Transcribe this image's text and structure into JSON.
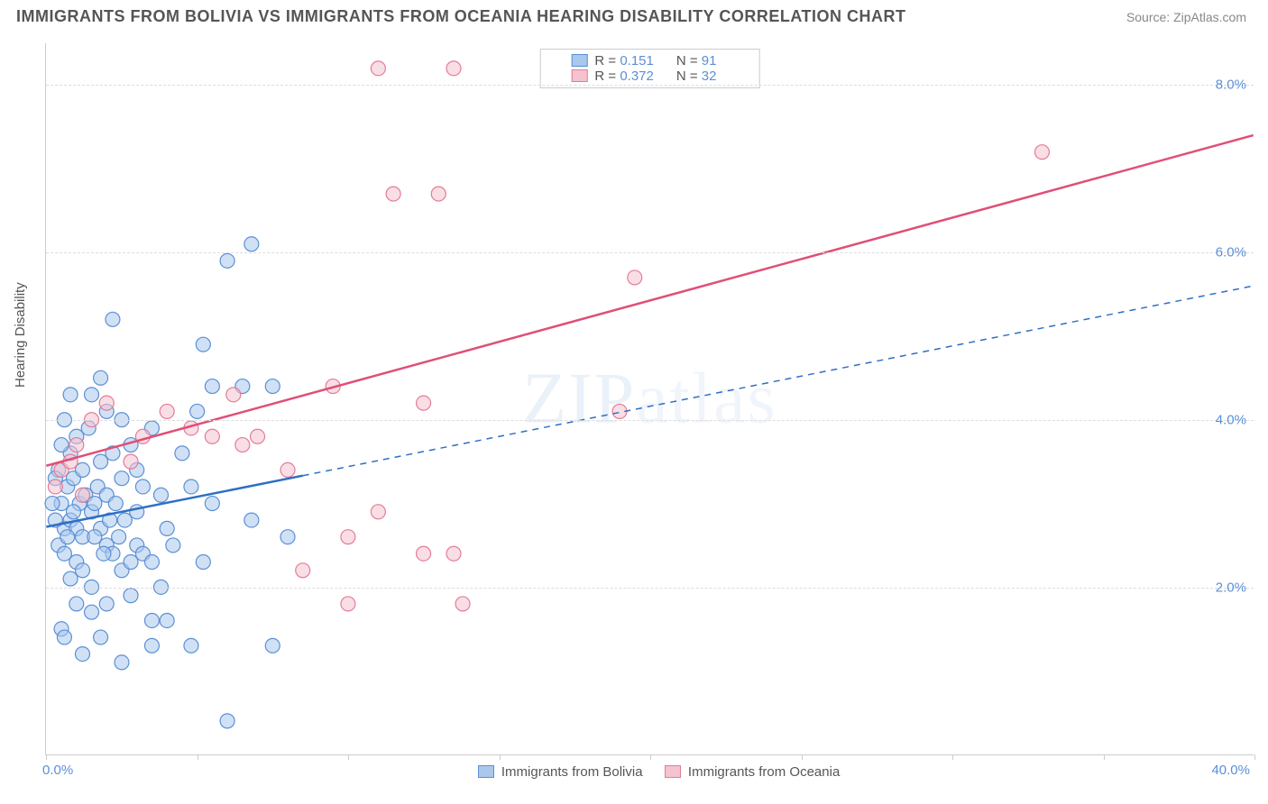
{
  "header": {
    "title": "IMMIGRANTS FROM BOLIVIA VS IMMIGRANTS FROM OCEANIA HEARING DISABILITY CORRELATION CHART",
    "source": "Source: ZipAtlas.com"
  },
  "ylabel": "Hearing Disability",
  "watermark": "ZIPatlas",
  "chart": {
    "type": "scatter",
    "xlim": [
      0,
      40
    ],
    "ylim": [
      0,
      8.5
    ],
    "x_ticks": [
      0,
      5,
      10,
      15,
      20,
      25,
      30,
      35,
      40
    ],
    "y_gridlines": [
      2,
      4,
      6,
      8
    ],
    "y_tick_labels": [
      "2.0%",
      "4.0%",
      "6.0%",
      "8.0%"
    ],
    "x_min_label": "0.0%",
    "x_max_label": "40.0%",
    "background_color": "#ffffff",
    "grid_color": "#dddddd",
    "axis_color": "#cccccc",
    "tick_label_color": "#5b8fd6",
    "marker_radius": 8,
    "marker_opacity": 0.55,
    "series": [
      {
        "name": "Immigrants from Bolivia",
        "fill": "#a9c8ec",
        "stroke": "#5b8fd6",
        "line_color": "#2f6fc4",
        "line_dash_after": 8.5,
        "r_value": "0.151",
        "n_value": "91",
        "trend": {
          "x1": 0,
          "y1": 2.72,
          "x2": 40,
          "y2": 5.6
        },
        "points": [
          [
            0.6,
            2.7
          ],
          [
            0.8,
            2.8
          ],
          [
            1.0,
            2.7
          ],
          [
            1.2,
            2.6
          ],
          [
            0.5,
            3.0
          ],
          [
            0.7,
            3.2
          ],
          [
            1.5,
            2.9
          ],
          [
            1.8,
            2.7
          ],
          [
            2.0,
            2.5
          ],
          [
            2.2,
            2.4
          ],
          [
            1.0,
            2.3
          ],
          [
            1.2,
            2.2
          ],
          [
            0.8,
            2.1
          ],
          [
            1.5,
            2.0
          ],
          [
            2.5,
            2.2
          ],
          [
            2.8,
            2.3
          ],
          [
            3.0,
            2.5
          ],
          [
            0.4,
            2.5
          ],
          [
            0.6,
            2.4
          ],
          [
            1.1,
            3.0
          ],
          [
            1.3,
            3.1
          ],
          [
            1.7,
            3.2
          ],
          [
            2.0,
            3.1
          ],
          [
            2.3,
            3.0
          ],
          [
            2.6,
            2.8
          ],
          [
            3.0,
            2.9
          ],
          [
            1.0,
            1.8
          ],
          [
            1.5,
            1.7
          ],
          [
            2.0,
            1.8
          ],
          [
            3.5,
            1.6
          ],
          [
            4.0,
            1.6
          ],
          [
            0.5,
            1.5
          ],
          [
            2.5,
            3.3
          ],
          [
            3.0,
            3.4
          ],
          [
            1.8,
            3.5
          ],
          [
            2.2,
            3.6
          ],
          [
            0.8,
            3.6
          ],
          [
            1.0,
            3.8
          ],
          [
            1.4,
            3.9
          ],
          [
            0.6,
            4.0
          ],
          [
            3.2,
            2.4
          ],
          [
            3.5,
            2.3
          ],
          [
            3.2,
            3.2
          ],
          [
            3.8,
            3.1
          ],
          [
            4.0,
            2.7
          ],
          [
            4.2,
            2.5
          ],
          [
            0.9,
            2.9
          ],
          [
            1.6,
            2.6
          ],
          [
            1.9,
            2.4
          ],
          [
            2.1,
            2.8
          ],
          [
            2.4,
            2.6
          ],
          [
            0.7,
            2.6
          ],
          [
            0.3,
            2.8
          ],
          [
            0.9,
            3.3
          ],
          [
            1.2,
            3.4
          ],
          [
            1.6,
            3.0
          ],
          [
            2.8,
            3.7
          ],
          [
            3.5,
            3.9
          ],
          [
            5.0,
            4.1
          ],
          [
            5.5,
            4.4
          ],
          [
            6.5,
            4.4
          ],
          [
            7.5,
            4.4
          ],
          [
            4.8,
            3.2
          ],
          [
            8.0,
            2.6
          ],
          [
            6.8,
            2.8
          ],
          [
            5.2,
            2.3
          ],
          [
            5.2,
            4.9
          ],
          [
            6.0,
            5.9
          ],
          [
            6.8,
            6.1
          ],
          [
            2.2,
            5.2
          ],
          [
            3.5,
            1.3
          ],
          [
            4.8,
            1.3
          ],
          [
            7.5,
            1.3
          ],
          [
            6.0,
            0.4
          ],
          [
            2.5,
            1.1
          ],
          [
            1.2,
            1.2
          ],
          [
            0.8,
            4.3
          ],
          [
            1.5,
            4.3
          ],
          [
            1.8,
            4.5
          ],
          [
            0.4,
            3.4
          ],
          [
            0.5,
            3.7
          ],
          [
            0.2,
            3.0
          ],
          [
            0.3,
            3.3
          ],
          [
            3.8,
            2.0
          ],
          [
            0.6,
            1.4
          ],
          [
            1.8,
            1.4
          ],
          [
            2.8,
            1.9
          ],
          [
            2.0,
            4.1
          ],
          [
            2.5,
            4.0
          ],
          [
            4.5,
            3.6
          ],
          [
            5.5,
            3.0
          ]
        ]
      },
      {
        "name": "Immigrants from Oceania",
        "fill": "#f4c3cf",
        "stroke": "#e57b96",
        "line_color": "#e04f76",
        "line_dash_after": 40,
        "r_value": "0.372",
        "n_value": "32",
        "trend": {
          "x1": 0,
          "y1": 3.45,
          "x2": 40,
          "y2": 7.4
        },
        "points": [
          [
            0.3,
            3.2
          ],
          [
            0.5,
            3.4
          ],
          [
            0.8,
            3.5
          ],
          [
            1.0,
            3.7
          ],
          [
            1.5,
            4.0
          ],
          [
            2.0,
            4.2
          ],
          [
            2.8,
            3.5
          ],
          [
            3.2,
            3.8
          ],
          [
            4.0,
            4.1
          ],
          [
            4.8,
            3.9
          ],
          [
            5.5,
            3.8
          ],
          [
            6.2,
            4.3
          ],
          [
            6.5,
            3.7
          ],
          [
            7.0,
            3.8
          ],
          [
            8.0,
            3.4
          ],
          [
            9.5,
            4.4
          ],
          [
            10.0,
            2.6
          ],
          [
            11.0,
            2.9
          ],
          [
            11.5,
            6.7
          ],
          [
            13.0,
            6.7
          ],
          [
            13.5,
            2.4
          ],
          [
            13.8,
            1.8
          ],
          [
            12.5,
            4.2
          ],
          [
            19.5,
            5.7
          ],
          [
            19.0,
            4.1
          ],
          [
            11.0,
            8.2
          ],
          [
            13.5,
            8.2
          ],
          [
            33.0,
            7.2
          ],
          [
            8.5,
            2.2
          ],
          [
            12.5,
            2.4
          ],
          [
            10.0,
            1.8
          ],
          [
            1.2,
            3.1
          ]
        ]
      }
    ]
  },
  "legend_bottom": {
    "items": [
      {
        "label": "Immigrants from Bolivia",
        "fill": "#a9c8ec",
        "stroke": "#5b8fd6"
      },
      {
        "label": "Immigrants from Oceania",
        "fill": "#f4c3cf",
        "stroke": "#e57b96"
      }
    ]
  },
  "legend_top_labels": {
    "R": "R  =",
    "N": "N  ="
  }
}
